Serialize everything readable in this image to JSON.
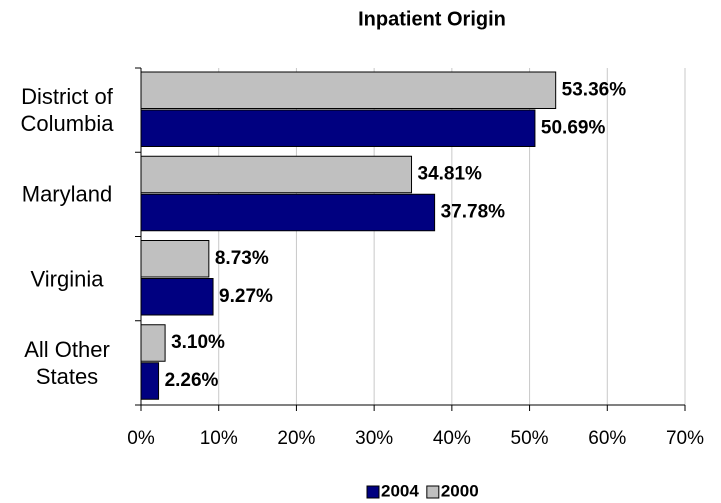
{
  "chart_data": {
    "type": "barh",
    "title": "Inpatient Origin",
    "categories": [
      "District of Columbia",
      "Maryland",
      "Virginia",
      "All Other States"
    ],
    "series": [
      {
        "name": "2004",
        "color": "#000080",
        "values": [
          50.69,
          37.78,
          9.27,
          2.26
        ],
        "value_labels": [
          "50.69%",
          "37.78%",
          "9.27%",
          "2.26%"
        ]
      },
      {
        "name": "2000",
        "color": "#c0c0c0",
        "values": [
          53.36,
          34.81,
          8.73,
          3.1
        ],
        "value_labels": [
          "53.36%",
          "34.81%",
          "8.73%",
          "3.10%"
        ]
      }
    ],
    "xlim": [
      0,
      70
    ],
    "xticks": [
      {
        "value": 0,
        "label": "0%"
      },
      {
        "value": 10,
        "label": "10%"
      },
      {
        "value": 20,
        "label": "20%"
      },
      {
        "value": 30,
        "label": "30%"
      },
      {
        "value": 40,
        "label": "40%"
      },
      {
        "value": 50,
        "label": "50%"
      },
      {
        "value": 60,
        "label": "60%"
      },
      {
        "value": 70,
        "label": "70%"
      }
    ],
    "grid": true,
    "legend": "bottom"
  }
}
